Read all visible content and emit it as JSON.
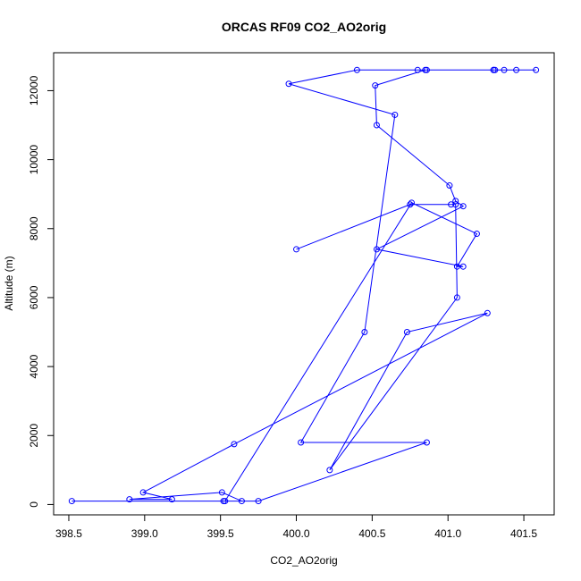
{
  "chart_data": {
    "type": "line",
    "title": "ORCAS RF09 CO2_AO2orig",
    "xlabel": "CO2_AO2orig",
    "ylabel": "Altitude (m)",
    "xlim": [
      398.4,
      401.7
    ],
    "ylim": [
      -300,
      13100
    ],
    "xticks": [
      398.5,
      399.0,
      399.5,
      400.0,
      400.5,
      401.0,
      401.5
    ],
    "xtick_labels": [
      "398.5",
      "399.0",
      "399.5",
      "400.0",
      "400.5",
      "401.0",
      "401.5"
    ],
    "yticks": [
      0,
      2000,
      4000,
      6000,
      8000,
      10000,
      12000
    ],
    "ytick_labels": [
      "0",
      "2000",
      "4000",
      "6000",
      "8000",
      "10000",
      "12000"
    ],
    "grid": false,
    "series_color": "#0000ff",
    "marker": "open-circle",
    "series": [
      {
        "x": [
          398.52,
          399.52,
          399.75,
          400.86,
          400.03,
          400.45,
          400.65,
          399.95,
          400.4,
          400.8,
          400.86,
          401.3,
          401.58,
          401.45,
          401.37,
          401.31,
          401.3,
          400.85,
          400.52,
          400.53,
          401.01,
          401.05,
          401.1,
          400.53,
          401.1,
          401.06,
          401.19,
          400.76,
          399.53,
          399.64,
          399.51,
          398.9,
          399.18,
          398.99,
          399.59,
          401.26,
          400.73,
          400.22,
          401.06,
          401.05,
          401.02,
          400.75,
          400.0
        ],
        "y": [
          100,
          100,
          100,
          1800,
          1800,
          5000,
          11300,
          12200,
          12600,
          12600,
          12600,
          12600,
          12600,
          12600,
          12600,
          12600,
          12600,
          12600,
          12150,
          11000,
          9250,
          8800,
          8650,
          7400,
          6900,
          6900,
          7850,
          8750,
          100,
          100,
          350,
          150,
          150,
          350,
          1750,
          5550,
          5000,
          1000,
          6000,
          8700,
          8700,
          8700,
          7400
        ]
      }
    ]
  }
}
